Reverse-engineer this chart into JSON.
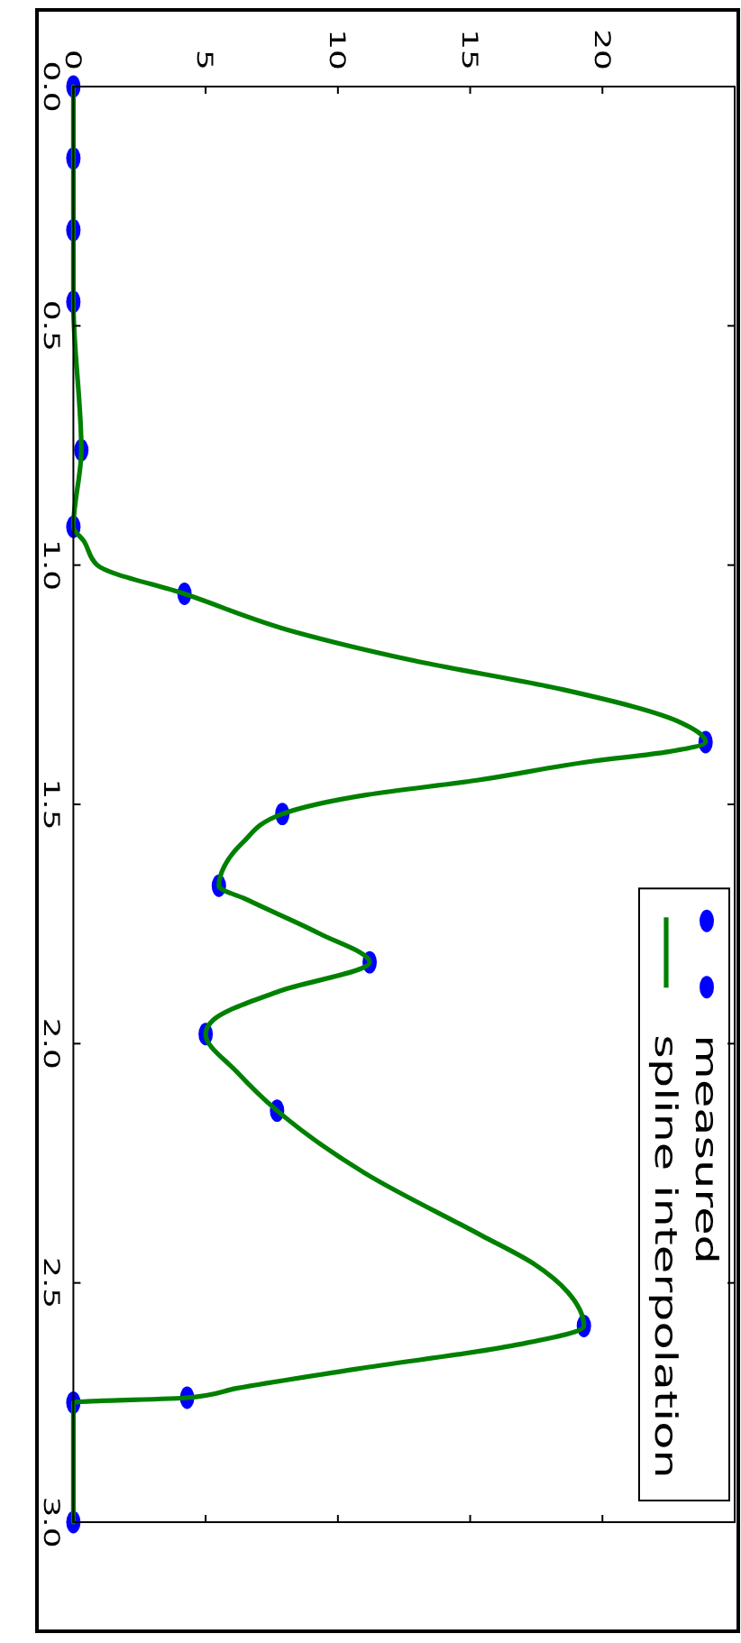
{
  "chart_data": {
    "type": "scatter",
    "xlim": [
      0,
      25
    ],
    "xticks": [
      0,
      5,
      10,
      15,
      20
    ],
    "ylim": [
      3,
      0
    ],
    "yticks": [
      {
        "value": 0,
        "label": "0.0"
      },
      0.5,
      {
        "value": 1,
        "label": "1.0"
      },
      1.5,
      {
        "value": 2,
        "label": "2.0"
      },
      2.5,
      {
        "value": 3,
        "label": "3.0"
      }
    ],
    "legend": "bottom right",
    "series": [
      {
        "name": "measured",
        "marker": "circle",
        "color": "#0000ff",
        "x": [
          0,
          0,
          0,
          0,
          0.3,
          0,
          4.2,
          23.9,
          7.9,
          5.5,
          11.2,
          5.0,
          7.7,
          19.3,
          4.3,
          0,
          0
        ],
        "values": [
          0,
          0.15,
          0.3,
          0.45,
          0.76,
          0.92,
          1.06,
          1.37,
          1.52,
          1.67,
          1.83,
          1.98,
          2.14,
          2.59,
          2.74,
          2.75,
          3.0
        ]
      },
      {
        "name": "spline interpolation",
        "type": "line",
        "marker": "none",
        "line_style": "solid",
        "color": "#008000",
        "x": [
          0,
          0,
          0.3,
          0,
          0.4,
          0.9,
          4.2,
          8.4,
          12.9,
          18.5,
          23,
          23.9,
          22.5,
          19.6,
          15.2,
          11.1,
          7.9,
          6.4,
          5.7,
          5.5,
          6.6,
          9.3,
          11.2,
          7.8,
          5.3,
          5.0,
          6.2,
          7.7,
          11,
          15.4,
          17.4,
          18.7,
          19.3,
          16.7,
          10.7,
          6.2,
          4.3,
          0,
          0
        ],
        "values": [
          0,
          0.45,
          0.76,
          0.92,
          0.95,
          1.0,
          1.06,
          1.14,
          1.2,
          1.26,
          1.33,
          1.37,
          1.39,
          1.41,
          1.45,
          1.48,
          1.52,
          1.58,
          1.63,
          1.67,
          1.7,
          1.77,
          1.83,
          1.89,
          1.95,
          1.98,
          2.06,
          2.14,
          2.27,
          2.4,
          2.46,
          2.52,
          2.59,
          2.63,
          2.68,
          2.72,
          2.74,
          2.75,
          3.0
        ]
      }
    ]
  }
}
